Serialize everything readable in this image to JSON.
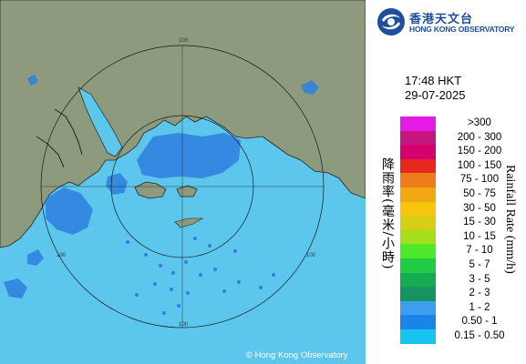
{
  "header": {
    "org_name_zh": "香港天文台",
    "org_name_en": "HONG KONG OBSERVATORY",
    "logo_icon": "hko-logo-icon"
  },
  "timestamp": {
    "time": "17:48 HKT",
    "date": "29-07-2025"
  },
  "legend": {
    "title_zh": "降雨率(毫米/小時)",
    "title_en": "Rainfall Rate (mm/h)",
    "items": [
      {
        "label": ">300",
        "color": "#e51be3"
      },
      {
        "label": "200 - 300",
        "color": "#c6157e"
      },
      {
        "label": "150 - 200",
        "color": "#d4006d"
      },
      {
        "label": "100 - 150",
        "color": "#e8281e"
      },
      {
        "label": "75 - 100",
        "color": "#ed7d18"
      },
      {
        "label": "50 - 75",
        "color": "#efa712"
      },
      {
        "label": "30 - 50",
        "color": "#f5c60c"
      },
      {
        "label": "15 - 30",
        "color": "#d6cf16"
      },
      {
        "label": "10 - 15",
        "color": "#a4e01a"
      },
      {
        "label": "7 - 10",
        "color": "#4ee92b"
      },
      {
        "label": "5 - 7",
        "color": "#1fcc44"
      },
      {
        "label": "3 - 5",
        "color": "#15ab50"
      },
      {
        "label": "2 - 3",
        "color": "#169363"
      },
      {
        "label": "1 - 2",
        "color": "#3d9df0"
      },
      {
        "label": "0.50 - 1",
        "color": "#1b84e8"
      },
      {
        "label": "0.15 - 0.50",
        "color": "#16c4f0"
      }
    ]
  },
  "map": {
    "range_ring_labels": [
      "100",
      "100",
      "100",
      "100"
    ],
    "copyright": "© Hong Kong Observatory"
  }
}
